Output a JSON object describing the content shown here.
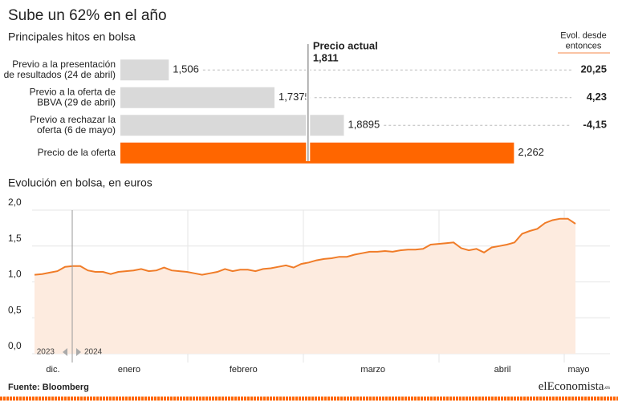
{
  "title": "Sube un 62% en el año",
  "source": "Fuente: Bloomberg",
  "logo": {
    "name": "elEconomista",
    "suffix": ".es"
  },
  "chart_data": [
    {
      "type": "bar",
      "orientation": "horizontal",
      "title": "Principales hitos en bolsa",
      "categories": [
        "Previo a la presentación\nde resultados (24 de abril)",
        "Previo a la oferta de\nBBVA (29 de abril)",
        "Previo a rechazar la\noferta (6 de mayo)",
        "Precio de la oferta"
      ],
      "values": [
        1.506,
        1.7375,
        1.8895,
        2.262
      ],
      "value_labels": [
        "1,506",
        "1,7375",
        "1,8895",
        "2,262"
      ],
      "colors": [
        "#d9d9d9",
        "#d9d9d9",
        "#d9d9d9",
        "#ff6600"
      ],
      "xlim": [
        1.4,
        2.3
      ],
      "reference": {
        "title": "Precio actual",
        "value": 1.811,
        "label": "1,811",
        "color": "#f5894a"
      },
      "change": {
        "title": "Evol. desde\nentonces",
        "values": [
          20.25,
          4.23,
          -4.15,
          null
        ],
        "value_labels": [
          "20,25",
          "4,23",
          "-4,15",
          null
        ],
        "colors": [
          "#6a9a2e",
          "#6a9a2e",
          "#d6213a",
          null
        ]
      }
    },
    {
      "type": "area",
      "title": "Evolución en bolsa, en euros",
      "categories": [
        null,
        null,
        "dic.",
        null,
        null,
        null,
        null,
        null,
        null,
        null,
        null,
        null,
        "enero",
        null,
        null,
        null,
        null,
        null,
        null,
        null,
        null,
        null,
        null,
        null,
        null,
        null,
        null,
        "febrero",
        null,
        null,
        null,
        null,
        null,
        null,
        null,
        null,
        null,
        null,
        null,
        null,
        null,
        null,
        null,
        null,
        "marzo",
        null,
        null,
        null,
        null,
        null,
        null,
        null,
        null,
        null,
        null,
        null,
        null,
        null,
        null,
        null,
        null,
        "abril",
        null,
        null,
        null,
        null,
        null,
        null,
        null,
        null,
        null,
        "mayo"
      ],
      "values": [
        1.1,
        1.11,
        1.13,
        1.15,
        1.21,
        1.22,
        1.22,
        1.16,
        1.14,
        1.14,
        1.11,
        1.14,
        1.15,
        1.16,
        1.18,
        1.15,
        1.16,
        1.2,
        1.16,
        1.15,
        1.14,
        1.12,
        1.1,
        1.12,
        1.14,
        1.18,
        1.15,
        1.17,
        1.17,
        1.15,
        1.18,
        1.19,
        1.21,
        1.23,
        1.2,
        1.25,
        1.27,
        1.3,
        1.32,
        1.33,
        1.35,
        1.35,
        1.38,
        1.4,
        1.42,
        1.42,
        1.43,
        1.42,
        1.44,
        1.45,
        1.45,
        1.46,
        1.52,
        1.53,
        1.54,
        1.55,
        1.47,
        1.44,
        1.46,
        1.41,
        1.48,
        1.5,
        1.52,
        1.55,
        1.67,
        1.71,
        1.74,
        1.82,
        1.86,
        1.88,
        1.88,
        1.81
      ],
      "color": "#f07c28",
      "fill": "#fdebdf",
      "ylim": [
        0,
        2
      ],
      "yticks": [
        {
          "value": 0,
          "label": "0,0"
        },
        {
          "value": 0.5,
          "label": "0,5"
        },
        {
          "value": 1,
          "label": "1,0"
        },
        {
          "value": 1.5,
          "label": "1,5"
        },
        {
          "value": 2,
          "label": "2,0"
        }
      ],
      "grid": true,
      "year_labels": [
        "2023",
        "2024"
      ]
    }
  ]
}
